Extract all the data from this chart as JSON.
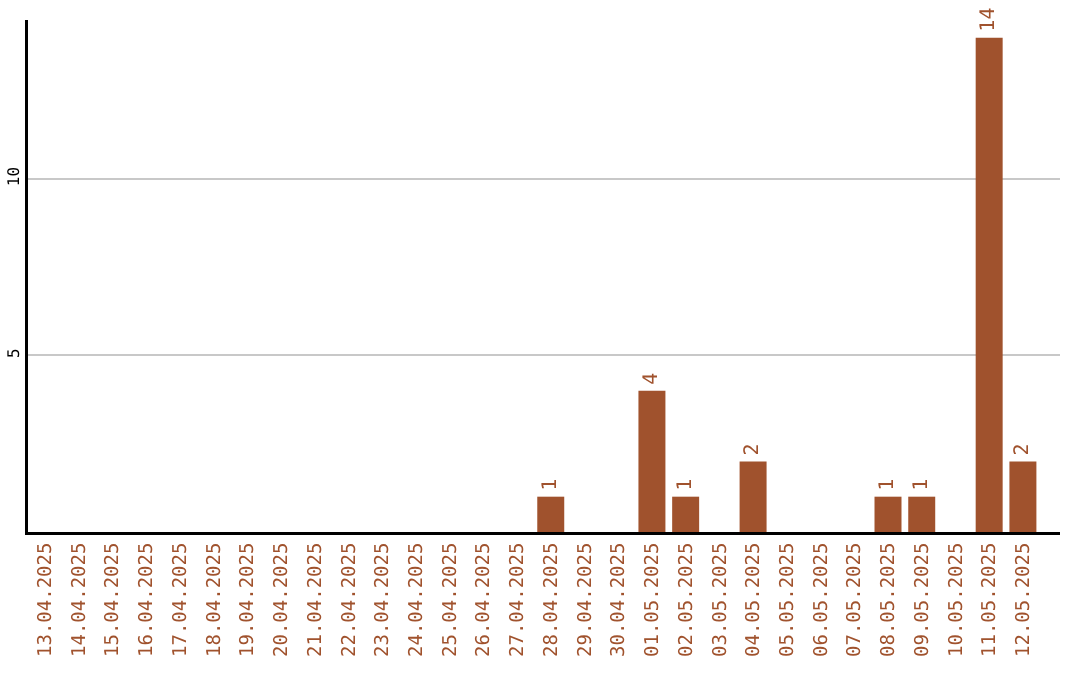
{
  "chart_data": {
    "type": "bar",
    "categories": [
      "13.04.2025",
      "14.04.2025",
      "15.04.2025",
      "16.04.2025",
      "17.04.2025",
      "18.04.2025",
      "19.04.2025",
      "20.04.2025",
      "21.04.2025",
      "22.04.2025",
      "23.04.2025",
      "24.04.2025",
      "25.04.2025",
      "26.04.2025",
      "27.04.2025",
      "28.04.2025",
      "29.04.2025",
      "30.04.2025",
      "01.05.2025",
      "02.05.2025",
      "03.05.2025",
      "04.05.2025",
      "05.05.2025",
      "06.05.2025",
      "07.05.2025",
      "08.05.2025",
      "09.05.2025",
      "10.05.2025",
      "11.05.2025",
      "12.05.2025"
    ],
    "values": [
      0,
      0,
      0,
      0,
      0,
      0,
      0,
      0,
      0,
      0,
      0,
      0,
      0,
      0,
      0,
      1,
      0,
      0,
      4,
      1,
      0,
      2,
      0,
      0,
      0,
      1,
      1,
      0,
      14,
      2
    ],
    "value_labels": [
      null,
      null,
      null,
      null,
      null,
      null,
      null,
      null,
      null,
      null,
      null,
      null,
      null,
      null,
      null,
      "1",
      null,
      null,
      "4",
      "1",
      null,
      "2",
      null,
      null,
      null,
      "1",
      "1",
      null,
      "14",
      "2"
    ],
    "color": "#a0522d",
    "ylim": [
      0,
      14.5
    ],
    "yticks": [
      5,
      10
    ],
    "grid": "y"
  }
}
